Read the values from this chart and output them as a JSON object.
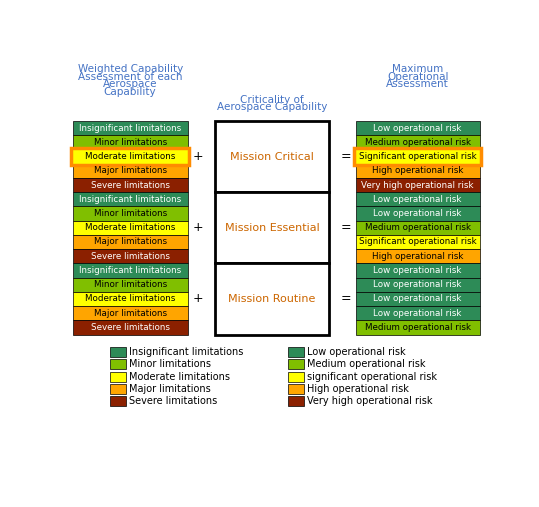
{
  "left_labels_colors": [
    [
      "Insignificant limitations",
      "#2D8B57"
    ],
    [
      "Minor limitations",
      "#80BF00"
    ],
    [
      "Moderate limitations",
      "#FFFF00"
    ],
    [
      "Major limitations",
      "#FFA500"
    ],
    [
      "Severe limitations",
      "#8B2000"
    ],
    [
      "Insignificant limitations",
      "#2D8B57"
    ],
    [
      "Minor limitations",
      "#80BF00"
    ],
    [
      "Moderate limitations",
      "#FFFF00"
    ],
    [
      "Major limitations",
      "#FFA500"
    ],
    [
      "Severe limitations",
      "#8B2000"
    ],
    [
      "Insignificant limitations",
      "#2D8B57"
    ],
    [
      "Minor limitations",
      "#80BF00"
    ],
    [
      "Moderate limitations",
      "#FFFF00"
    ],
    [
      "Major limitations",
      "#FFA500"
    ],
    [
      "Severe limitations",
      "#8B2000"
    ]
  ],
  "right_labels_colors": [
    [
      "Low operational risk",
      "#2D8B57"
    ],
    [
      "Medium operational risk",
      "#80BF00"
    ],
    [
      "Significant operational risk",
      "#FFFF00"
    ],
    [
      "High operational risk",
      "#FFA500"
    ],
    [
      "Very high operational risk",
      "#8B2000"
    ],
    [
      "Low operational risk",
      "#2D8B57"
    ],
    [
      "Low operational risk",
      "#2D8B57"
    ],
    [
      "Medium operational risk",
      "#80BF00"
    ],
    [
      "Significant operational risk",
      "#FFFF00"
    ],
    [
      "High operational risk",
      "#FFA500"
    ],
    [
      "Low operational risk",
      "#2D8B57"
    ],
    [
      "Low operational risk",
      "#2D8B57"
    ],
    [
      "Low operational risk",
      "#2D8B57"
    ],
    [
      "Low operational risk",
      "#2D8B57"
    ],
    [
      "Medium operational risk",
      "#80BF00"
    ]
  ],
  "center_labels": [
    "Mission Critical",
    "Mission Essential",
    "Mission Routine"
  ],
  "center_label_color": "#CC6600",
  "highlight_rows_left": [
    2
  ],
  "highlight_rows_right": [
    2
  ],
  "highlight_color": "#FF8C00",
  "legend_left": [
    [
      "Insignificant limitations",
      "#2D8B57"
    ],
    [
      "Minor limitations",
      "#80BF00"
    ],
    [
      "Moderate limitations",
      "#FFFF00"
    ],
    [
      "Major limitations",
      "#FFA500"
    ],
    [
      "Severe limitations",
      "#8B2000"
    ]
  ],
  "legend_right": [
    [
      "Low operational risk",
      "#2D8B57"
    ],
    [
      "Medium operational risk",
      "#80BF00"
    ],
    [
      "significant operational risk",
      "#FFFF00"
    ],
    [
      "High operational risk",
      "#FFA500"
    ],
    [
      "Very high operational risk",
      "#8B2000"
    ]
  ],
  "title_color": "#4472C4",
  "bg_color": "#FFFFFF"
}
